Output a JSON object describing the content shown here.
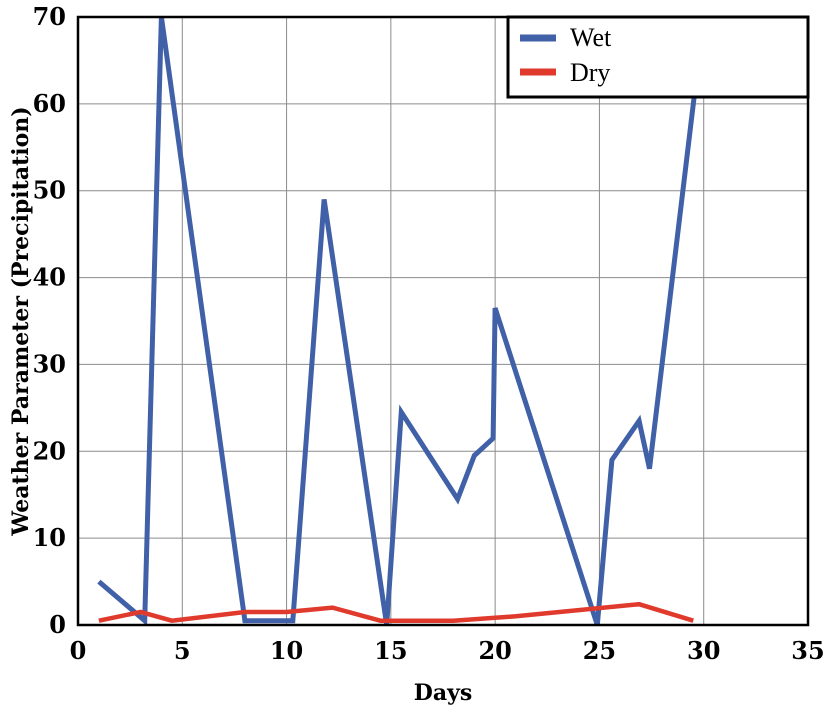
{
  "chart_data": {
    "type": "line",
    "title": "",
    "xlabel": "Days",
    "ylabel": "Weather Parameter (Precipitation)",
    "xlim": [
      0,
      35
    ],
    "ylim": [
      0,
      70
    ],
    "xticks": [
      0,
      5,
      10,
      15,
      20,
      25,
      30,
      35
    ],
    "yticks": [
      0,
      10,
      20,
      30,
      40,
      50,
      60,
      70
    ],
    "grid": true,
    "legend_position": "top-right",
    "series": [
      {
        "name": "Wet",
        "color": "#4060a8",
        "x": [
          1,
          3.2,
          4,
          8,
          8.5,
          10.3,
          11.8,
          14.8,
          15.5,
          18.2,
          19,
          19.9,
          20,
          24.9,
          25.6,
          26.9,
          27.4,
          29.6
        ],
        "y": [
          5,
          0.5,
          70,
          0.5,
          0.5,
          0.5,
          49,
          0,
          24.5,
          14.5,
          19.5,
          21.5,
          36.5,
          0,
          19,
          23.5,
          18,
          62
        ]
      },
      {
        "name": "Dry",
        "color": "#e03a2c",
        "x": [
          1,
          3,
          4.5,
          8,
          10,
          12.2,
          14.5,
          18,
          21,
          26.9,
          29.5
        ],
        "y": [
          0.5,
          1.5,
          0.5,
          1.5,
          1.5,
          2,
          0.5,
          0.5,
          1,
          2.4,
          0.5
        ]
      }
    ]
  }
}
